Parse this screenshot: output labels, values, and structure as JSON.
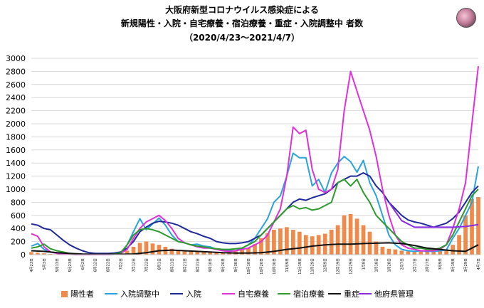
{
  "chart_data": {
    "type": "line",
    "title_lines": [
      "大阪府新型コロナウイルス感染症による",
      "新規陽性・入院・自宅療養・宿泊療養・重症・入院調整中 者数",
      "（2020/4/23～2021/4/7）"
    ],
    "ylim": [
      0,
      3000
    ],
    "y_ticks": [
      0,
      200,
      400,
      600,
      800,
      1000,
      1200,
      1400,
      1600,
      1800,
      2000,
      2200,
      2400,
      2600,
      2800,
      3000
    ],
    "x_tick_labels": [
      "4月23日",
      "5月3日",
      "5月13日",
      "5月23日",
      "6月2日",
      "6月12日",
      "6月22日",
      "7月2日",
      "7月12日",
      "7月22日",
      "8月1日",
      "8月11日",
      "8月21日",
      "8月31日",
      "9月10日",
      "9月20日",
      "9月30日",
      "10月10日",
      "10月20日",
      "10月30日",
      "11月9日",
      "11月19日",
      "11月29日",
      "12月9日",
      "12月19日",
      "12月29日",
      "1月8日",
      "1月18日",
      "1月28日",
      "2月7日",
      "2月17日",
      "2月27日",
      "3月9日",
      "3月19日",
      "3月29日",
      "4月7日"
    ],
    "x_points": [
      0,
      10,
      20,
      30,
      40,
      50,
      60,
      70,
      80,
      90,
      100,
      110,
      120,
      130,
      140,
      150,
      160,
      170,
      180,
      190,
      200,
      210,
      220,
      230,
      240,
      250,
      260,
      270,
      280,
      290,
      300,
      310,
      320,
      330,
      340,
      350
    ],
    "x_days_total": 350,
    "bars": {
      "name": "陽性者",
      "color": "#f08a4b",
      "x": [
        0,
        5,
        10,
        15,
        20,
        25,
        30,
        35,
        40,
        45,
        50,
        55,
        60,
        65,
        70,
        75,
        80,
        85,
        90,
        95,
        100,
        105,
        110,
        115,
        120,
        125,
        130,
        135,
        140,
        145,
        150,
        155,
        160,
        165,
        170,
        175,
        180,
        185,
        190,
        195,
        200,
        205,
        210,
        215,
        220,
        225,
        230,
        235,
        240,
        245,
        250,
        255,
        260,
        265,
        270,
        275,
        280,
        285,
        290,
        295,
        300,
        305,
        310,
        315,
        320,
        325,
        330,
        335,
        340,
        345,
        350
      ],
      "values": [
        40,
        30,
        20,
        10,
        5,
        5,
        3,
        2,
        2,
        3,
        3,
        2,
        5,
        10,
        20,
        60,
        120,
        180,
        200,
        170,
        150,
        120,
        90,
        70,
        60,
        50,
        40,
        50,
        40,
        35,
        30,
        40,
        50,
        80,
        100,
        160,
        250,
        330,
        380,
        400,
        420,
        380,
        350,
        300,
        280,
        300,
        320,
        380,
        450,
        600,
        620,
        550,
        450,
        350,
        200,
        120,
        90,
        80,
        60,
        50,
        40,
        60,
        80,
        70,
        60,
        80,
        150,
        300,
        600,
        850,
        880
      ]
    },
    "series": [
      {
        "name": "入院調整中",
        "color": "#29a3dc",
        "x": [
          0,
          5,
          10,
          15,
          20,
          25,
          30,
          35,
          40,
          45,
          50,
          55,
          60,
          65,
          70,
          75,
          80,
          85,
          90,
          95,
          100,
          105,
          110,
          115,
          120,
          125,
          130,
          135,
          140,
          145,
          150,
          155,
          160,
          165,
          170,
          175,
          180,
          185,
          190,
          195,
          200,
          205,
          210,
          215,
          220,
          225,
          230,
          235,
          240,
          245,
          250,
          255,
          260,
          265,
          270,
          275,
          280,
          285,
          290,
          295,
          300,
          305,
          310,
          315,
          320,
          325,
          330,
          335,
          340,
          345,
          350
        ],
        "values": [
          130,
          170,
          80,
          40,
          30,
          20,
          10,
          5,
          0,
          0,
          0,
          0,
          0,
          5,
          30,
          150,
          350,
          550,
          380,
          470,
          560,
          450,
          300,
          200,
          180,
          150,
          160,
          130,
          120,
          80,
          80,
          60,
          60,
          100,
          150,
          250,
          400,
          550,
          800,
          900,
          1200,
          1550,
          1480,
          1480,
          1050,
          1150,
          950,
          1250,
          1400,
          1500,
          1420,
          1260,
          1440,
          1100,
          900,
          600,
          300,
          150,
          80,
          60,
          50,
          60,
          50,
          50,
          60,
          70,
          250,
          400,
          600,
          800,
          1350
        ]
      },
      {
        "name": "入院",
        "color": "#1f2a9a",
        "x": [
          0,
          5,
          10,
          15,
          20,
          25,
          30,
          35,
          40,
          45,
          50,
          55,
          60,
          65,
          70,
          75,
          80,
          85,
          90,
          95,
          100,
          105,
          110,
          115,
          120,
          125,
          130,
          135,
          140,
          145,
          150,
          155,
          160,
          165,
          170,
          175,
          180,
          185,
          190,
          195,
          200,
          205,
          210,
          215,
          220,
          225,
          230,
          235,
          240,
          245,
          250,
          255,
          260,
          265,
          270,
          275,
          280,
          285,
          290,
          295,
          300,
          305,
          310,
          315,
          320,
          325,
          330,
          335,
          340,
          345,
          350
        ],
        "values": [
          470,
          450,
          400,
          380,
          300,
          220,
          150,
          100,
          60,
          30,
          20,
          20,
          20,
          25,
          40,
          100,
          200,
          350,
          420,
          480,
          510,
          500,
          480,
          450,
          400,
          350,
          320,
          280,
          250,
          200,
          180,
          170,
          170,
          180,
          200,
          250,
          300,
          400,
          500,
          600,
          700,
          800,
          850,
          830,
          870,
          900,
          930,
          1000,
          1100,
          1150,
          1200,
          1200,
          1250,
          1200,
          1050,
          950,
          800,
          700,
          600,
          530,
          500,
          480,
          450,
          420,
          450,
          480,
          550,
          650,
          800,
          950,
          1050
        ]
      },
      {
        "name": "自宅療養",
        "color": "#e030d8",
        "x": [
          0,
          5,
          10,
          15,
          20,
          25,
          30,
          35,
          40,
          45,
          50,
          55,
          60,
          65,
          70,
          75,
          80,
          85,
          90,
          95,
          100,
          105,
          110,
          115,
          120,
          125,
          130,
          135,
          140,
          145,
          150,
          155,
          160,
          165,
          170,
          175,
          180,
          185,
          190,
          195,
          200,
          205,
          210,
          215,
          220,
          225,
          230,
          235,
          240,
          245,
          250,
          255,
          260,
          265,
          270,
          275,
          280,
          285,
          290,
          295,
          300,
          305,
          310,
          315,
          320,
          325,
          330,
          335,
          340,
          345,
          350
        ],
        "values": [
          320,
          280,
          120,
          40,
          20,
          10,
          5,
          0,
          0,
          0,
          0,
          0,
          0,
          5,
          20,
          80,
          250,
          400,
          500,
          550,
          600,
          520,
          400,
          250,
          180,
          150,
          120,
          100,
          100,
          80,
          60,
          50,
          60,
          80,
          100,
          150,
          200,
          300,
          500,
          700,
          1200,
          1950,
          1850,
          1900,
          1300,
          1000,
          950,
          1000,
          1300,
          2200,
          2800,
          2500,
          2200,
          1900,
          1500,
          1000,
          600,
          300,
          150,
          100,
          80,
          60,
          60,
          60,
          80,
          150,
          400,
          700,
          1100,
          2000,
          2880
        ]
      },
      {
        "name": "宿泊療養",
        "color": "#2e9a2e",
        "x": [
          0,
          5,
          10,
          15,
          20,
          25,
          30,
          35,
          40,
          45,
          50,
          55,
          60,
          65,
          70,
          75,
          80,
          85,
          90,
          95,
          100,
          105,
          110,
          115,
          120,
          125,
          130,
          135,
          140,
          145,
          150,
          155,
          160,
          165,
          170,
          175,
          180,
          185,
          190,
          195,
          200,
          205,
          210,
          215,
          220,
          225,
          230,
          235,
          240,
          245,
          250,
          255,
          260,
          265,
          270,
          275,
          280,
          285,
          290,
          295,
          300,
          305,
          310,
          315,
          320,
          325,
          330,
          335,
          340,
          345,
          350
        ],
        "values": [
          100,
          120,
          160,
          90,
          60,
          40,
          20,
          10,
          5,
          5,
          5,
          5,
          5,
          10,
          30,
          150,
          300,
          380,
          400,
          380,
          350,
          300,
          250,
          200,
          180,
          150,
          130,
          120,
          100,
          90,
          80,
          80,
          90,
          100,
          150,
          200,
          300,
          400,
          500,
          600,
          700,
          750,
          700,
          720,
          680,
          700,
          750,
          800,
          1100,
          1150,
          1050,
          1150,
          950,
          800,
          600,
          500,
          400,
          300,
          200,
          150,
          100,
          100,
          80,
          80,
          100,
          150,
          300,
          500,
          700,
          900,
          1000
        ]
      },
      {
        "name": "重症",
        "color": "#111111",
        "x": [
          0,
          10,
          20,
          30,
          40,
          50,
          60,
          70,
          80,
          90,
          100,
          110,
          120,
          130,
          140,
          150,
          160,
          170,
          180,
          190,
          200,
          210,
          220,
          230,
          240,
          250,
          260,
          270,
          280,
          290,
          300,
          310,
          320,
          330,
          340,
          350
        ],
        "values": [
          60,
          50,
          30,
          20,
          10,
          5,
          5,
          5,
          10,
          30,
          60,
          70,
          60,
          50,
          40,
          30,
          25,
          25,
          30,
          50,
          80,
          100,
          130,
          150,
          160,
          160,
          170,
          175,
          180,
          170,
          140,
          100,
          80,
          60,
          50,
          150
        ]
      },
      {
        "name": "他府県管理",
        "color": "#8a2be2",
        "x": [
          280,
          290,
          300,
          310,
          320,
          330,
          340,
          350
        ],
        "values": [
          800,
          520,
          420,
          420,
          420,
          420,
          430,
          460
        ]
      }
    ]
  }
}
